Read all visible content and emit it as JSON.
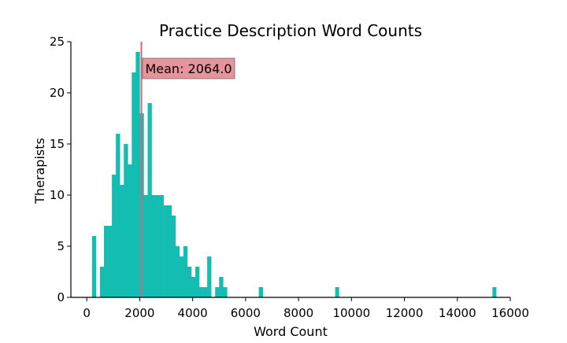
{
  "chart_data": {
    "type": "histogram",
    "title": "Practice Description Word Counts",
    "xlabel": "Word Count",
    "ylabel": "Therapists",
    "xlim": [
      -600,
      16000
    ],
    "ylim": [
      0,
      25
    ],
    "xticks": [
      "0",
      "2000",
      "4000",
      "6000",
      "8000",
      "10000",
      "12000",
      "14000",
      "16000"
    ],
    "yticks": [
      "0",
      "5",
      "10",
      "15",
      "20",
      "25"
    ],
    "bin_start": 200,
    "bin_width": 150,
    "counts": [
      6,
      0,
      3,
      7,
      7,
      12,
      16,
      11,
      15,
      13,
      22,
      24,
      18,
      10,
      19,
      10,
      10,
      10,
      9,
      9,
      8,
      5,
      4,
      5,
      3,
      2,
      3,
      1,
      1,
      4,
      0,
      1,
      2,
      1,
      0,
      0,
      0,
      0,
      0,
      0,
      0,
      0,
      1
    ],
    "extra_bars": [
      {
        "x": 9385,
        "value": 1
      },
      {
        "x": 15325,
        "value": 1
      }
    ],
    "bar_color": "#14bdb2",
    "mean_line": {
      "x": 2064,
      "color": "#c96a7a"
    },
    "annotation": {
      "text": "Mean: 2064.0",
      "box_color": "#e6939c"
    },
    "grid": false,
    "legend": "none"
  }
}
